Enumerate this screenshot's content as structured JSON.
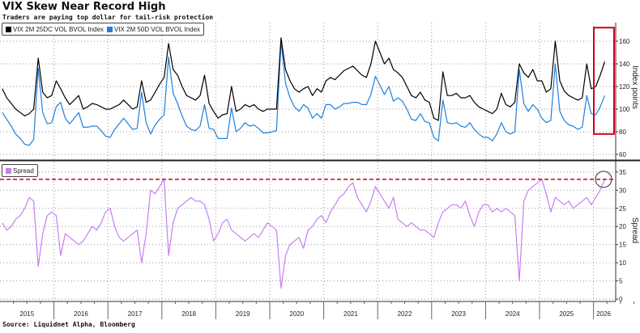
{
  "title": "VIX Skew Near Record High",
  "subtitle": "Traders are paying top dollar for tail-risk protection",
  "source": "Source: Liquidnet Alpha, Bloomberg",
  "chart_data": [
    {
      "type": "line",
      "panel": "top",
      "ylabel": "Index points",
      "ylim": [
        55,
        172
      ],
      "yticks": [
        "60",
        "80",
        "100",
        "120",
        "140",
        "160"
      ],
      "grid": true,
      "legend": "top-left",
      "highlight_box": {
        "color": "#d0021b",
        "x_range": [
          "2026-01",
          "2026-03"
        ],
        "y_range": [
          78,
          172
        ]
      },
      "series": [
        {
          "name": "VIX 2M 25DC VOL BVOL Index",
          "color": "#000000",
          "values_by_year": {
            "2015": [
              118,
              110,
              105,
              100,
              97,
              94,
              96,
              100,
              145,
              115,
              110,
              112
            ],
            "2016": [
              125,
              118,
              110,
              104,
              108,
              112,
              100,
              102,
              105,
              104,
              102,
              100
            ],
            "2017": [
              100,
              102,
              104,
              108,
              104,
              100,
              102,
              125,
              106,
              108,
              115,
              122
            ],
            "2018": [
              128,
              158,
              135,
              130,
              120,
              112,
              110,
              108,
              112,
              130,
              105,
              98
            ],
            "2019": [
              92,
              95,
              96,
              120,
              98,
              100,
              104,
              102,
              104,
              100,
              98,
              100
            ],
            "2020": [
              100,
              100,
              163,
              135,
              125,
              118,
              115,
              118,
              120,
              112,
              118,
              115
            ],
            "2021": [
              125,
              128,
              126,
              130,
              134,
              136,
              138,
              134,
              130,
              128,
              140,
              160
            ],
            "2022": [
              150,
              140,
              145,
              135,
              132,
              128,
              120,
              112,
              110,
              115,
              108,
              106
            ],
            "2023": [
              92,
              90,
              133,
              112,
              112,
              114,
              110,
              110,
              112,
              106,
              102,
              100
            ],
            "2024": [
              98,
              96,
              100,
              114,
              104,
              102,
              106,
              140,
              132,
              128,
              135,
              125
            ],
            "2025": [
              125,
              115,
              118,
              160,
              125,
              116,
              112,
              110,
              108,
              110,
              140,
              118
            ],
            "2026": [
              120,
              130,
              142
            ]
          }
        },
        {
          "name": "VIX 2M 50D VOL BVOL Index",
          "color": "#1f7fdc",
          "values_by_year": {
            "2015": [
              97,
              91,
              85,
              78,
              74,
              69,
              68,
              73,
              136,
              97,
              87,
              88
            ],
            "2016": [
              102,
              106,
              92,
              87,
              92,
              97,
              84,
              84,
              85,
              85,
              81,
              76
            ],
            "2017": [
              75,
              82,
              87,
              92,
              87,
              82,
              83,
              115,
              88,
              78,
              86,
              91
            ],
            "2018": [
              95,
              146,
              114,
              105,
              94,
              85,
              82,
              81,
              85,
              104,
              83,
              82
            ],
            "2019": [
              74,
              74,
              74,
              101,
              80,
              83,
              88,
              85,
              86,
              83,
              79,
              79
            ],
            "2020": [
              80,
              81,
              160,
              123,
              110,
              102,
              98,
              104,
              101,
              92,
              96,
              92
            ],
            "2021": [
              104,
              104,
              100,
              102,
              105,
              105,
              106,
              106,
              104,
              104,
              113,
              129
            ],
            "2022": [
              121,
              113,
              120,
              107,
              110,
              107,
              100,
              91,
              90,
              96,
              89,
              88
            ],
            "2023": [
              75,
              72,
              108,
              88,
              87,
              88,
              85,
              84,
              88,
              82,
              78,
              75
            ],
            "2024": [
              75,
              72,
              78,
              88,
              80,
              78,
              80,
              135,
              105,
              98,
              104,
              100
            ],
            "2025": [
              92,
              88,
              90,
              140,
              98,
              90,
              86,
              85,
              82,
              84,
              112,
              96
            ],
            "2026": [
              95,
              102,
              112
            ]
          }
        }
      ]
    },
    {
      "type": "line",
      "panel": "bottom",
      "ylabel": "Spread",
      "ylim": [
        0,
        37
      ],
      "yticks": [
        "0",
        "5",
        "10",
        "15",
        "20",
        "25",
        "30",
        "35"
      ],
      "grid": true,
      "legend": "top-left",
      "reference_line": {
        "value": 33,
        "color": "#d0021b",
        "style": "dashed"
      },
      "highlight_circle": {
        "x": "2026-03",
        "y": 33
      },
      "series": [
        {
          "name": "Spread",
          "color": "#c77ef0",
          "values_by_year": {
            "2015": [
              21,
              19,
              20,
              22,
              23,
              25,
              28,
              27,
              9,
              18,
              23,
              24
            ],
            "2016": [
              23,
              12,
              18,
              17,
              16,
              15,
              16,
              18,
              20,
              19,
              21,
              24
            ],
            "2017": [
              25,
              20,
              17,
              16,
              17,
              18,
              19,
              10,
              18,
              30,
              29,
              31
            ],
            "2018": [
              33,
              12,
              21,
              25,
              26,
              27,
              28,
              27,
              27,
              26,
              22,
              16
            ],
            "2019": [
              18,
              21,
              22,
              19,
              18,
              17,
              16,
              17,
              18,
              17,
              19,
              21
            ],
            "2020": [
              20,
              19,
              3,
              12,
              15,
              16,
              17,
              14,
              19,
              20,
              22,
              23
            ],
            "2021": [
              21,
              24,
              26,
              28,
              29,
              31,
              32,
              28,
              26,
              24,
              27,
              31
            ],
            "2022": [
              29,
              27,
              25,
              28,
              22,
              21,
              20,
              21,
              20,
              19,
              19,
              18
            ],
            "2023": [
              17,
              21,
              24,
              25,
              26,
              26,
              25,
              27,
              23,
              20,
              24,
              26
            ],
            "2024": [
              26,
              24,
              25,
              24,
              25,
              24,
              23,
              5,
              27,
              30,
              31,
              32
            ],
            "2025": [
              33,
              29,
              24,
              28,
              27,
              26,
              27,
              25,
              26,
              27,
              28,
              26
            ],
            "2026": [
              28,
              30,
              33
            ]
          }
        }
      ]
    }
  ],
  "x_axis": {
    "labels": [
      "2015",
      "2016",
      "2017",
      "2018",
      "2019",
      "2020",
      "2021",
      "2022",
      "2023",
      "2024",
      "2025",
      "2026"
    ]
  }
}
